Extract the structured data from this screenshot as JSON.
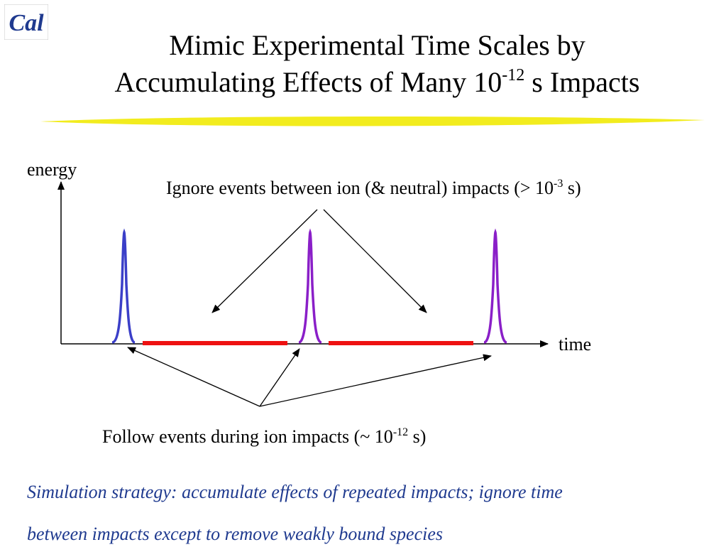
{
  "header": {
    "logo_text": "Cal",
    "title_line1": "Mimic Experimental Time Scales by",
    "title_line2_pre": "Accumulating Effects of Many 10",
    "title_line2_exp": "-12",
    "title_line2_post": " s Impacts"
  },
  "diagram": {
    "y_axis_label": "energy",
    "x_axis_label": "time",
    "ignore_label_pre": "Ignore events between ion (& neutral) impacts (> 10",
    "ignore_label_exp": "-3",
    "ignore_label_post": " s)",
    "follow_label_pre": "Follow events during ion impacts (~ 10",
    "follow_label_exp": "-12",
    "follow_label_post": " s)",
    "colors": {
      "first_peak": "#3b3fc8",
      "other_peaks": "#8a1fc8",
      "ignore_segments": "#ee1111",
      "axis": "#000000"
    }
  },
  "notes": {
    "line1": "Simulation strategy: accumulate effects of repeated impacts; ignore time",
    "line2": "between impacts except to remove weakly bound species"
  },
  "colors": {
    "logo": "#1f3a8f",
    "swoosh": "#f2ec1e",
    "note_text": "#1f3a8f"
  }
}
